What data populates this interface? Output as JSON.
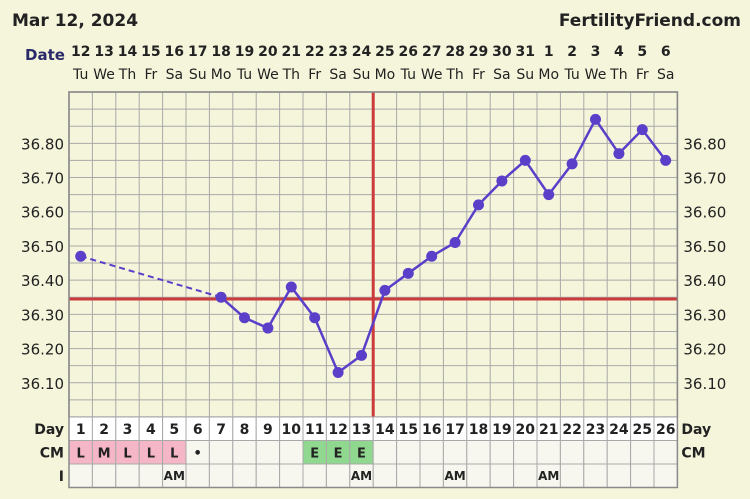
{
  "header": {
    "date": "Mar 12, 2024",
    "site": "FertilityFriend.com"
  },
  "labels": {
    "date_row": "Date",
    "day_row": "Day",
    "cm_row": "CM",
    "i_row": "I"
  },
  "colors": {
    "background": "#f5f5dc",
    "grid": "#a9a9a9",
    "temp_line": "#5b3fc9",
    "coverline": "#cc3b3b",
    "ovulation_line": "#cc3b3b",
    "menses_cell": "#f5b6c8",
    "egg_cell": "#90d890",
    "cell_bg": "#f7f7f0"
  },
  "chart_data": {
    "type": "line",
    "y_ticks": [
      "36.10",
      "36.20",
      "36.30",
      "36.40",
      "36.50",
      "36.60",
      "36.70",
      "36.80"
    ],
    "ylim": [
      36.0,
      36.95
    ],
    "dates": [
      "12",
      "13",
      "14",
      "15",
      "16",
      "17",
      "18",
      "19",
      "20",
      "21",
      "22",
      "23",
      "24",
      "25",
      "26",
      "27",
      "28",
      "29",
      "30",
      "31",
      "1",
      "2",
      "3",
      "4",
      "5",
      "6"
    ],
    "weekdays": [
      "Tu",
      "We",
      "Th",
      "Fr",
      "Sa",
      "Su",
      "Mo",
      "Tu",
      "We",
      "Th",
      "Fr",
      "Sa",
      "Su",
      "Mo",
      "Tu",
      "We",
      "Th",
      "Fr",
      "Sa",
      "Su",
      "Mo",
      "Tu",
      "We",
      "Th",
      "Fr",
      "Sa"
    ],
    "cycle_days": [
      1,
      2,
      3,
      4,
      5,
      6,
      7,
      8,
      9,
      10,
      11,
      12,
      13,
      14,
      15,
      16,
      17,
      18,
      19,
      20,
      21,
      22,
      23,
      24,
      25,
      26
    ],
    "temperatures": [
      36.47,
      null,
      null,
      null,
      null,
      null,
      36.35,
      36.29,
      36.26,
      36.38,
      36.29,
      36.13,
      36.18,
      36.37,
      36.42,
      36.47,
      36.51,
      36.62,
      36.69,
      36.75,
      36.65,
      36.74,
      36.87,
      36.77,
      36.84,
      36.75
    ],
    "coverline": 36.345,
    "ovulation_day": 13,
    "cm": [
      "L",
      "M",
      "L",
      "L",
      "L",
      "•",
      "",
      "",
      "",
      "",
      "E",
      "E",
      "E",
      "",
      "",
      "",
      "",
      "",
      "",
      "",
      "",
      "",
      "",
      "",
      "",
      ""
    ],
    "intercourse": [
      "",
      "",
      "",
      "",
      "AM",
      "",
      "",
      "",
      "",
      "",
      "",
      "",
      "AM",
      "",
      "",
      "",
      "AM",
      "",
      "",
      "",
      "AM",
      "",
      "",
      "",
      "",
      ""
    ]
  }
}
